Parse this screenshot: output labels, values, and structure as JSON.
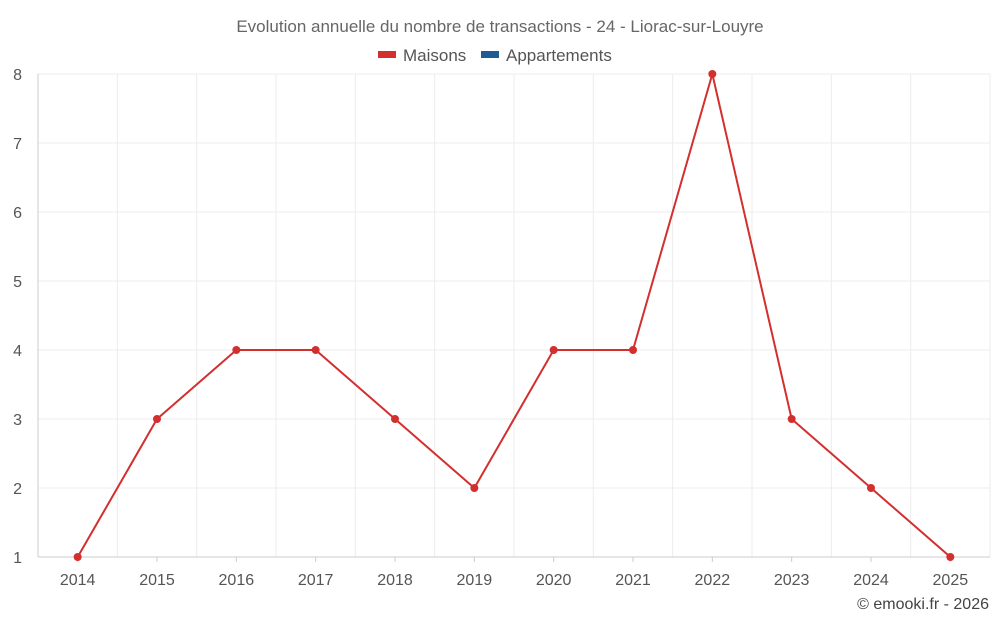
{
  "chart_data": {
    "type": "line",
    "title": "Evolution annuelle du nombre de transactions - 24 - Liorac-sur-Louyre",
    "xlabel": "",
    "ylabel": "",
    "categories": [
      "2014",
      "2015",
      "2016",
      "2017",
      "2018",
      "2019",
      "2020",
      "2021",
      "2022",
      "2023",
      "2024",
      "2025"
    ],
    "ylim": [
      1,
      8
    ],
    "yticks": [
      "1",
      "2",
      "3",
      "4",
      "5",
      "6",
      "7",
      "8"
    ],
    "grid": true,
    "legend_position": "top-center",
    "legend": [
      {
        "name": "Maisons",
        "color": "#d32f2f"
      },
      {
        "name": "Appartements",
        "color": "#1e5b94"
      }
    ],
    "series": [
      {
        "name": "Maisons",
        "color": "#d32f2f",
        "values": [
          1,
          3,
          4,
          4,
          3,
          2,
          4,
          4,
          8,
          3,
          2,
          1
        ]
      }
    ],
    "credit": "© emooki.fr - 2026"
  }
}
